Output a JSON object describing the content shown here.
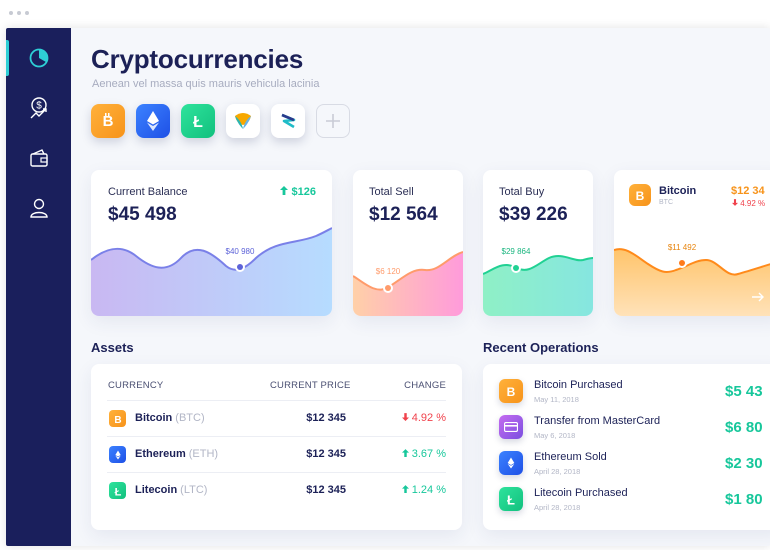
{
  "header": {
    "title": "Cryptocurrencies",
    "subtitle": "Aenean vel massa quis mauris vehicula lacinia"
  },
  "sidebar": {
    "items": [
      {
        "name": "dashboard",
        "icon": "pie-chart-icon",
        "active": true
      },
      {
        "name": "finance",
        "icon": "dollar-trend-icon",
        "active": false
      },
      {
        "name": "wallet",
        "icon": "wallet-icon",
        "active": false
      },
      {
        "name": "profile",
        "icon": "user-icon",
        "active": false
      }
    ]
  },
  "coins": [
    {
      "name": "Bitcoin",
      "icon": "bitcoin-icon",
      "color": "#f7931a"
    },
    {
      "name": "Ethereum",
      "icon": "ethereum-icon",
      "color": "#2a63f5"
    },
    {
      "name": "Litecoin",
      "icon": "litecoin-icon",
      "color": "#1ccf8a"
    },
    {
      "name": "NEM",
      "icon": "nem-icon",
      "color": "#ffffff"
    },
    {
      "name": "Zcoin",
      "icon": "zcoin-icon",
      "color": "#ffffff"
    },
    {
      "name": "Add",
      "icon": "plus-icon",
      "color": ""
    }
  ],
  "cards": {
    "balance": {
      "label": "Current Balance",
      "value": "$45 498",
      "change": "$126",
      "point": "$40 980"
    },
    "sell": {
      "label": "Total Sell",
      "value": "$12 564",
      "point": "$6 120"
    },
    "buy": {
      "label": "Total Buy",
      "value": "$39 226",
      "point": "$29 864"
    },
    "bitcoin": {
      "name": "Bitcoin",
      "symbol": "BTC",
      "value": "$12 34",
      "change": "4.92 %",
      "point": "$11 492"
    }
  },
  "assets": {
    "title": "Assets",
    "columns": {
      "currency": "CURRENCY",
      "price": "CURRENT PRICE",
      "change": "CHANGE"
    },
    "rows": [
      {
        "name": "Bitcoin",
        "symbol": "(BTC)",
        "price": "$12 345",
        "change": "4.92 %",
        "direction": "down"
      },
      {
        "name": "Ethereum",
        "symbol": "(ETH)",
        "price": "$12 345",
        "change": "3.67 %",
        "direction": "up"
      },
      {
        "name": "Litecoin",
        "symbol": "(LTC)",
        "price": "$12 345",
        "change": "1.24 %",
        "direction": "up"
      }
    ]
  },
  "operations": {
    "title": "Recent Operations",
    "items": [
      {
        "name": "Bitcoin Purchased",
        "date": "May 11, 2018",
        "amount": "$5 43"
      },
      {
        "name": "Transfer from MasterCard",
        "date": "May 6, 2018",
        "amount": "$6 80"
      },
      {
        "name": "Ethereum Sold",
        "date": "April 28, 2018",
        "amount": "$2 30"
      },
      {
        "name": "Litecoin Purchased",
        "date": "April 28, 2018",
        "amount": "$1 80"
      }
    ]
  },
  "colors": {
    "sidebar": "#1a1f5c",
    "accent": "#2ecfd6",
    "positive": "#17c79b",
    "negative": "#f0424c",
    "text": "#1c2157"
  }
}
